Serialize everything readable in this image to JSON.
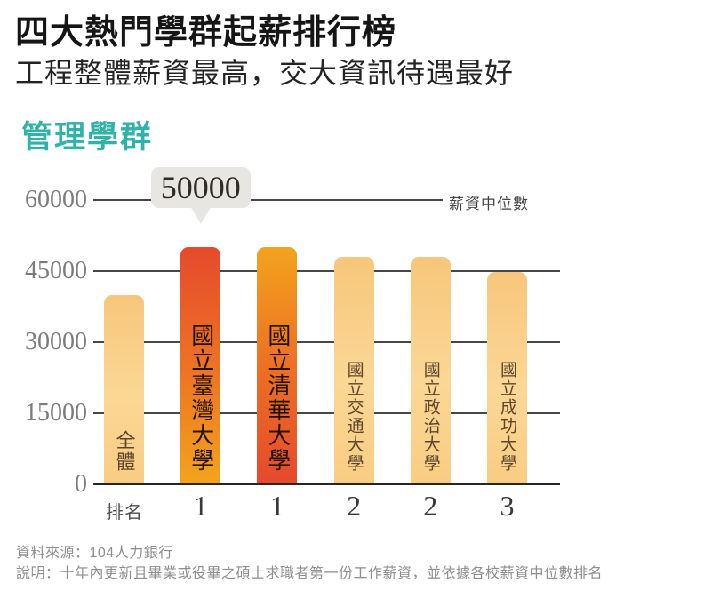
{
  "header": {
    "title": "四大熱門學群起薪排行榜",
    "subtitle": "工程整體薪資最高，交大資訊待遇最好"
  },
  "section": {
    "title": "管理學群"
  },
  "chart_data": {
    "type": "bar",
    "title": "管理學群",
    "legend": "薪資中位數",
    "legend_position": "top-right",
    "grid": true,
    "ylim": [
      0,
      60000
    ],
    "yticks": [
      0,
      15000,
      30000,
      45000,
      60000
    ],
    "rank_header": "排名",
    "categories": [
      "全體",
      "國立臺灣大學",
      "國立清華大學",
      "國立交通大學",
      "國立政治大學",
      "國立成功大學"
    ],
    "values": [
      40000,
      50000,
      50000,
      48000,
      48000,
      44800
    ],
    "ranks": [
      "",
      "1",
      "1",
      "2",
      "2",
      "3"
    ],
    "bar_styles": [
      "light",
      "red-to-orange",
      "orange-to-red",
      "light",
      "light",
      "light"
    ],
    "callout": {
      "bar": "國立臺灣大學",
      "bar_index": 1,
      "label": "50000"
    }
  },
  "footer": {
    "source": "資料來源：104人力銀行",
    "note": "說明：十年內更新且畢業或役畢之碩士求職者第一份工作薪資，並依據各校薪資中位數排名"
  },
  "colors": {
    "accent_teal": "#2fb2a7",
    "bar_light_top": "#f7c67c",
    "bar_light_bottom": "#f9cc82",
    "bar_red": "#e64a2c",
    "bar_orange": "#f3a31d",
    "callout_bg": "#e8e6e3",
    "gridline": "#474747"
  }
}
